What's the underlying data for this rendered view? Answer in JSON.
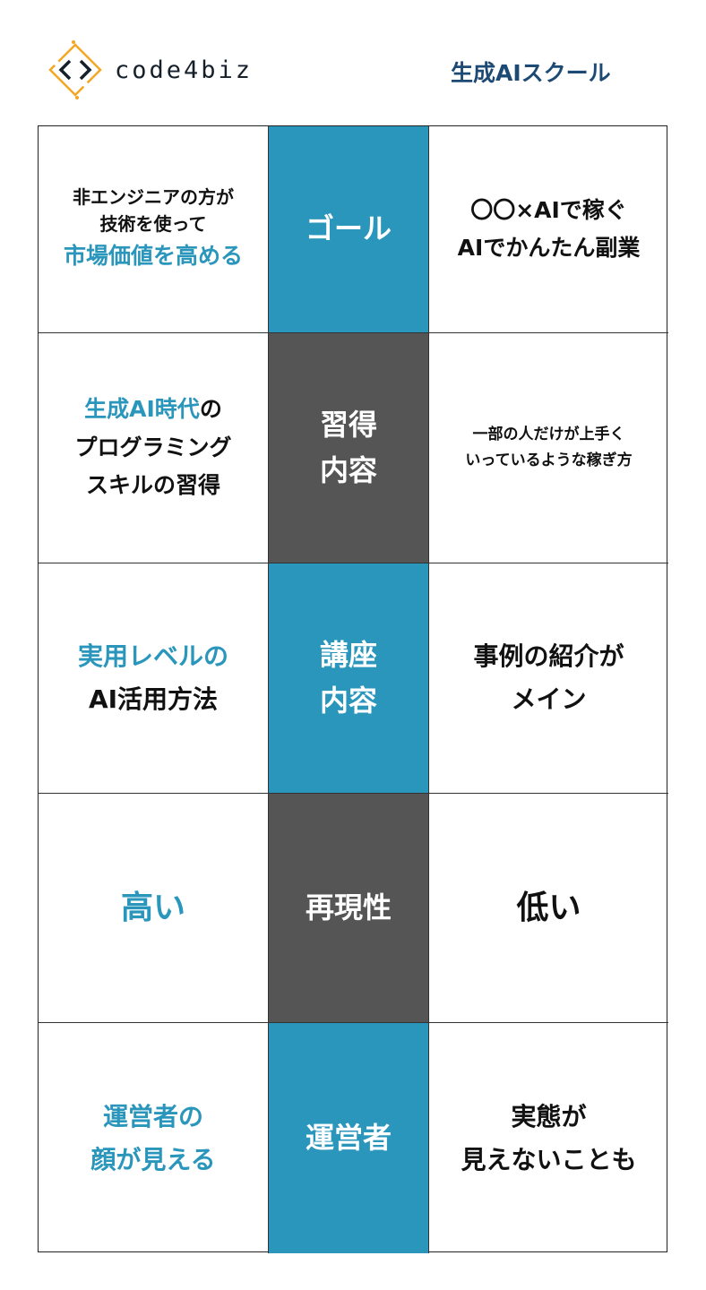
{
  "header": {
    "brand": "code4biz",
    "school_label": "生成AIスクール"
  },
  "colors": {
    "teal": "#2a96bc",
    "dark": "#555555",
    "title": "#1d4a74",
    "logo_orange": "#f5a623"
  },
  "rows": [
    {
      "left": {
        "line1": "非エンジニアの方が",
        "line2": "技術を使って",
        "line3": "市場価値を高める"
      },
      "center": {
        "line1": "ゴール"
      },
      "right": {
        "line1": "〇〇×AIで稼ぐ",
        "line2": "AIでかんたん副業"
      }
    },
    {
      "left": {
        "line1a": "生成AI時代",
        "line1b": "の",
        "line2": "プログラミング",
        "line3": "スキルの習得"
      },
      "center": {
        "line1": "習得",
        "line2": "内容"
      },
      "right": {
        "line1": "一部の人だけが上手く",
        "line2": "いっているような稼ぎ方"
      }
    },
    {
      "left": {
        "line1": "実用レベルの",
        "line2": "AI活用方法"
      },
      "center": {
        "line1": "講座",
        "line2": "内容"
      },
      "right": {
        "line1": "事例の紹介が",
        "line2": "メイン"
      }
    },
    {
      "left": {
        "line1": "高い"
      },
      "center": {
        "line1": "再現性"
      },
      "right": {
        "line1": "低い"
      }
    },
    {
      "left": {
        "line1": "運営者の",
        "line2": "顔が見える"
      },
      "center": {
        "line1": "運営者"
      },
      "right": {
        "line1": "実態が",
        "line2": "見えないことも"
      }
    }
  ]
}
